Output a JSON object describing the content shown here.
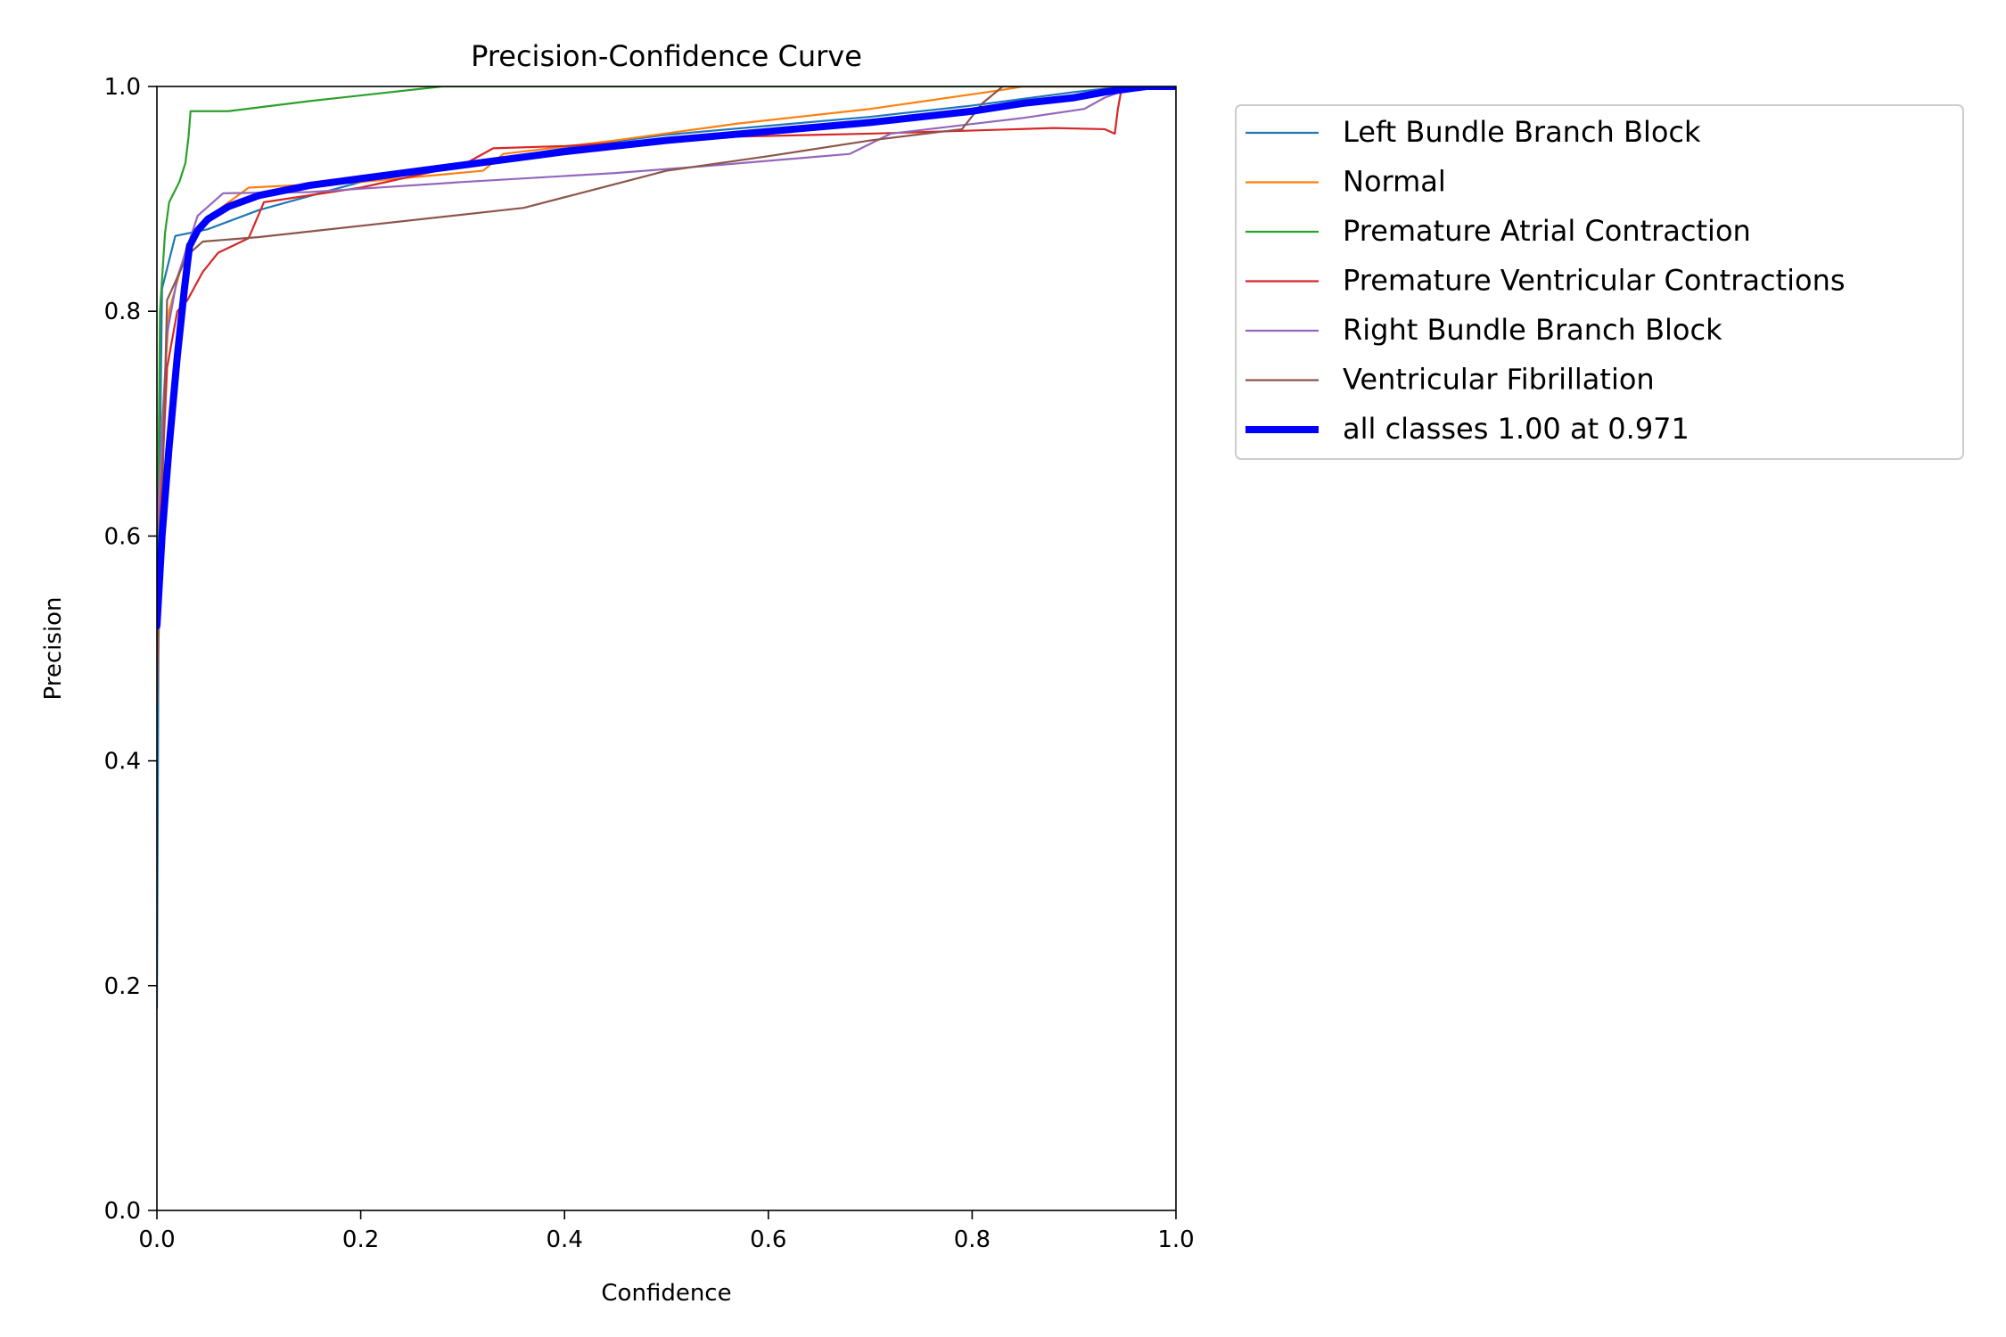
{
  "chart_data": {
    "type": "line",
    "title": "Precision-Confidence Curve",
    "xlabel": "Confidence",
    "ylabel": "Precision",
    "xlim": [
      0,
      1
    ],
    "ylim": [
      0,
      1
    ],
    "xticks": [
      "0.0",
      "0.2",
      "0.4",
      "0.6",
      "0.8",
      "1.0"
    ],
    "yticks": [
      "0.0",
      "0.2",
      "0.4",
      "0.6",
      "0.8",
      "1.0"
    ],
    "grid": false,
    "legend_placement": "outside-right",
    "series": [
      {
        "name": "Left Bundle Branch Block",
        "color": "#1f77b4",
        "points": [
          [
            0.0,
            0.18
          ],
          [
            0.002,
            0.6
          ],
          [
            0.005,
            0.82
          ],
          [
            0.018,
            0.867
          ],
          [
            0.05,
            0.873
          ],
          [
            0.1,
            0.89
          ],
          [
            0.2,
            0.915
          ],
          [
            0.3,
            0.93
          ],
          [
            0.4,
            0.945
          ],
          [
            0.5,
            0.957
          ],
          [
            0.6,
            0.965
          ],
          [
            0.7,
            0.973
          ],
          [
            0.8,
            0.983
          ],
          [
            0.9,
            0.995
          ],
          [
            0.95,
            1.0
          ],
          [
            1.0,
            1.0
          ]
        ]
      },
      {
        "name": "Normal",
        "color": "#ff7f0e",
        "points": [
          [
            0.0,
            0.45
          ],
          [
            0.005,
            0.7
          ],
          [
            0.012,
            0.8
          ],
          [
            0.03,
            0.86
          ],
          [
            0.06,
            0.89
          ],
          [
            0.09,
            0.91
          ],
          [
            0.2,
            0.915
          ],
          [
            0.32,
            0.925
          ],
          [
            0.34,
            0.94
          ],
          [
            0.45,
            0.952
          ],
          [
            0.57,
            0.967
          ],
          [
            0.7,
            0.98
          ],
          [
            0.83,
            0.997
          ],
          [
            0.85,
            1.0
          ],
          [
            1.0,
            1.0
          ]
        ]
      },
      {
        "name": "Premature Atrial Contraction",
        "color": "#2ca02c",
        "points": [
          [
            0.0,
            0.5
          ],
          [
            0.003,
            0.8
          ],
          [
            0.008,
            0.87
          ],
          [
            0.012,
            0.897
          ],
          [
            0.022,
            0.915
          ],
          [
            0.028,
            0.932
          ],
          [
            0.031,
            0.955
          ],
          [
            0.033,
            0.978
          ],
          [
            0.07,
            0.978
          ],
          [
            0.15,
            0.987
          ],
          [
            0.28,
            1.0
          ],
          [
            1.0,
            1.0
          ]
        ]
      },
      {
        "name": "Premature Ventricular Contractions",
        "color": "#d62728",
        "points": [
          [
            0.0,
            0.55
          ],
          [
            0.01,
            0.75
          ],
          [
            0.02,
            0.8
          ],
          [
            0.03,
            0.81
          ],
          [
            0.045,
            0.835
          ],
          [
            0.06,
            0.852
          ],
          [
            0.09,
            0.865
          ],
          [
            0.105,
            0.897
          ],
          [
            0.2,
            0.91
          ],
          [
            0.3,
            0.93
          ],
          [
            0.33,
            0.945
          ],
          [
            0.4,
            0.947
          ],
          [
            0.55,
            0.955
          ],
          [
            0.7,
            0.958
          ],
          [
            0.88,
            0.963
          ],
          [
            0.93,
            0.962
          ],
          [
            0.94,
            0.958
          ],
          [
            0.943,
            0.98
          ],
          [
            0.947,
            1.0
          ],
          [
            1.0,
            1.0
          ]
        ]
      },
      {
        "name": "Right Bundle Branch Block",
        "color": "#9467bd",
        "points": [
          [
            0.0,
            0.6
          ],
          [
            0.01,
            0.78
          ],
          [
            0.02,
            0.83
          ],
          [
            0.04,
            0.885
          ],
          [
            0.065,
            0.905
          ],
          [
            0.15,
            0.906
          ],
          [
            0.3,
            0.915
          ],
          [
            0.45,
            0.923
          ],
          [
            0.55,
            0.93
          ],
          [
            0.68,
            0.94
          ],
          [
            0.72,
            0.958
          ],
          [
            0.85,
            0.972
          ],
          [
            0.91,
            0.98
          ],
          [
            0.93,
            0.99
          ],
          [
            0.96,
            1.0
          ],
          [
            1.0,
            1.0
          ]
        ]
      },
      {
        "name": "Ventricular Fibrillation",
        "color": "#8c564b",
        "points": [
          [
            0.0,
            0.45
          ],
          [
            0.01,
            0.81
          ],
          [
            0.03,
            0.85
          ],
          [
            0.045,
            0.862
          ],
          [
            0.1,
            0.866
          ],
          [
            0.36,
            0.892
          ],
          [
            0.5,
            0.925
          ],
          [
            0.6,
            0.938
          ],
          [
            0.7,
            0.952
          ],
          [
            0.79,
            0.962
          ],
          [
            0.81,
            0.985
          ],
          [
            0.83,
            1.0
          ],
          [
            1.0,
            1.0
          ]
        ]
      },
      {
        "name": "all classes 1.00 at 0.971",
        "color": "#0000ff",
        "bold": true,
        "points": [
          [
            0.0,
            0.52
          ],
          [
            0.005,
            0.6
          ],
          [
            0.012,
            0.68
          ],
          [
            0.02,
            0.76
          ],
          [
            0.027,
            0.82
          ],
          [
            0.032,
            0.858
          ],
          [
            0.04,
            0.872
          ],
          [
            0.05,
            0.882
          ],
          [
            0.07,
            0.893
          ],
          [
            0.1,
            0.903
          ],
          [
            0.15,
            0.912
          ],
          [
            0.2,
            0.918
          ],
          [
            0.3,
            0.93
          ],
          [
            0.4,
            0.942
          ],
          [
            0.5,
            0.952
          ],
          [
            0.6,
            0.96
          ],
          [
            0.7,
            0.968
          ],
          [
            0.8,
            0.978
          ],
          [
            0.85,
            0.985
          ],
          [
            0.9,
            0.99
          ],
          [
            0.93,
            0.995
          ],
          [
            0.971,
            1.0
          ],
          [
            1.0,
            1.0
          ]
        ]
      }
    ]
  }
}
